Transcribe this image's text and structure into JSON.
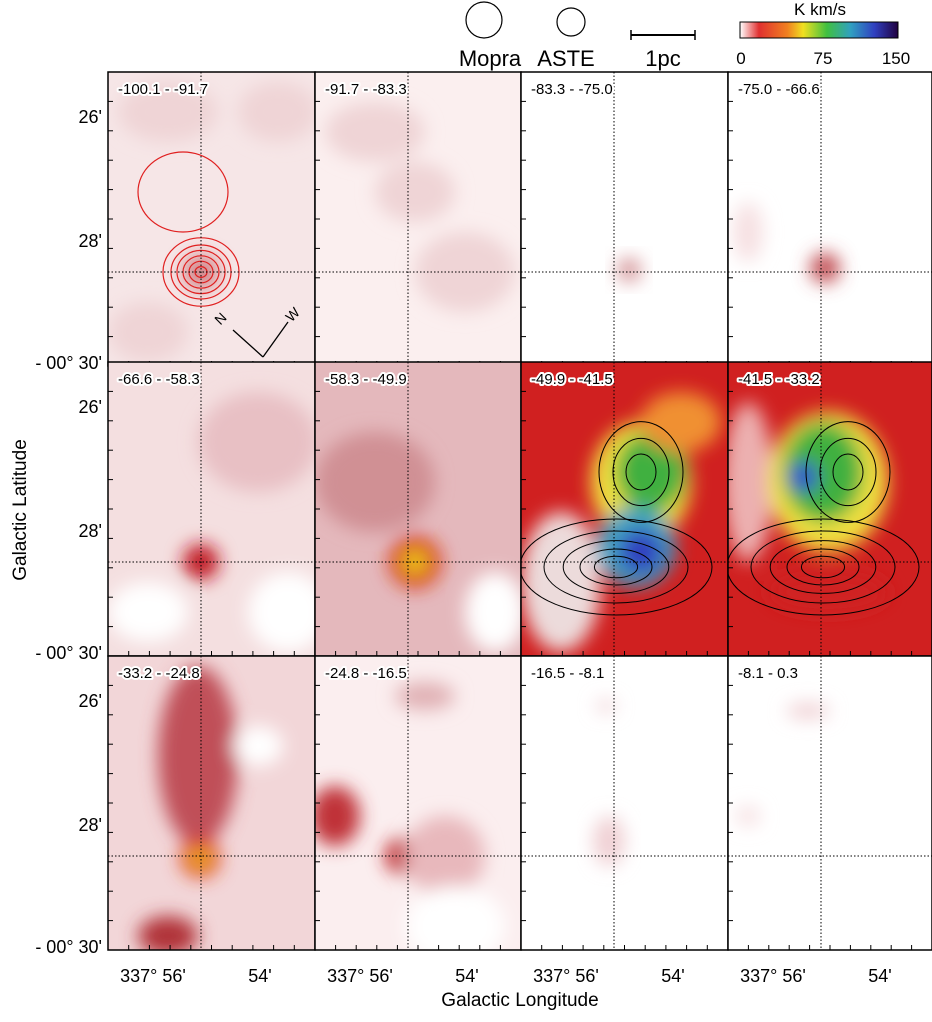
{
  "legend": {
    "beams": [
      "Mopra",
      "ASTE"
    ],
    "scale_bar": "1pc"
  },
  "colorbar": {
    "title": "K km/s",
    "ticks": [
      "0",
      "75",
      "150"
    ]
  },
  "panels": [
    "-100.1 - -91.7",
    "-91.7 - -83.3",
    "-83.3 - -75.0",
    "-75.0 - -66.6",
    "-66.6 - -58.3",
    "-58.3 - -49.9",
    "-49.9 - -41.5",
    "-41.5 - -33.2",
    "-33.2 - -24.8",
    "-24.8 - -16.5",
    "-16.5 - -8.1",
    "-8.1 - 0.3"
  ],
  "y_ticks": [
    "26'",
    "28'",
    "- 00° 30'"
  ],
  "x_ticks": [
    "337° 56'",
    "54'"
  ],
  "compass": [
    "N",
    "W"
  ],
  "x_axis_title": "Galactic Longitude",
  "y_axis_title": "Galactic Latitude"
}
